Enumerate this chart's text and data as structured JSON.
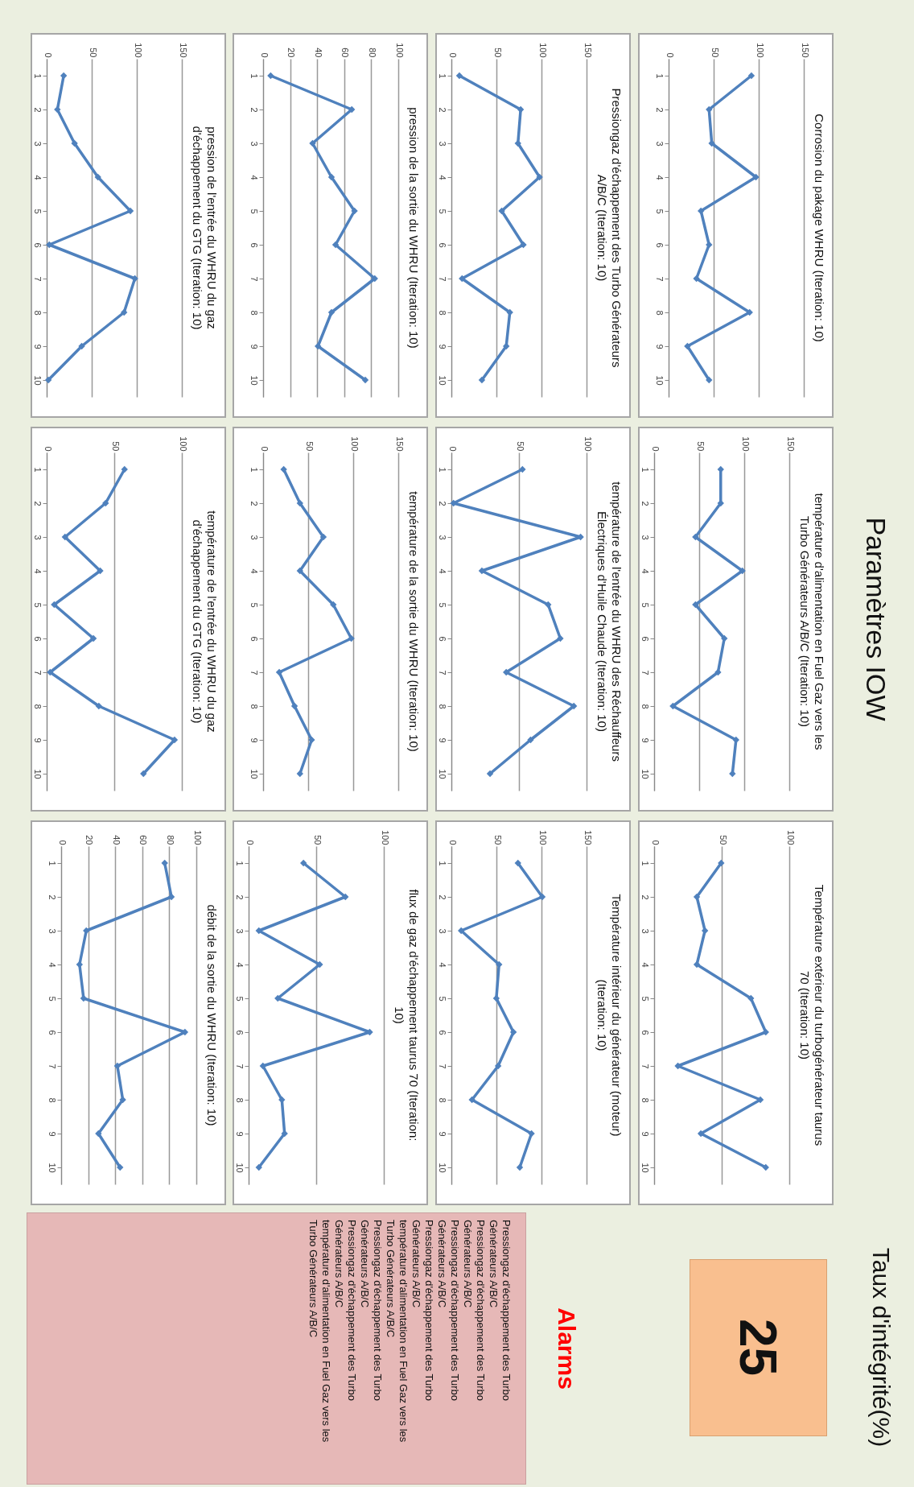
{
  "chart_data": [
    {
      "type": "other",
      "title": "Paramètres IOW"
    },
    {
      "type": "line",
      "orientation": "horizontal",
      "title": "Corrosion du pakage WHRU (Iteration: 10)",
      "categories": [
        "1",
        "2",
        "3",
        "4",
        "5",
        "6",
        "7",
        "8",
        "9",
        "10"
      ],
      "values": [
        91,
        44,
        47,
        96,
        35,
        44,
        30,
        89,
        20,
        44
      ],
      "color": "#4f81bd",
      "xlim": [
        0,
        150
      ],
      "xticks": [
        0,
        50,
        100,
        150
      ],
      "grid": "x",
      "marker": "diamond"
    },
    {
      "type": "line",
      "orientation": "horizontal",
      "title": "température d'alimentation en Fuel Gaz vers les Turbo Générateurs A/B/C (Iteration: 10)",
      "categories": [
        "1",
        "2",
        "3",
        "4",
        "5",
        "6",
        "7",
        "8",
        "9",
        "10"
      ],
      "values": [
        73,
        73,
        45,
        97,
        45,
        77,
        70,
        20,
        90,
        86
      ],
      "color": "#4f81bd",
      "xlim": [
        0,
        150
      ],
      "xticks": [
        0,
        50,
        100,
        150
      ],
      "grid": "x",
      "marker": "diamond"
    },
    {
      "type": "line",
      "orientation": "horizontal",
      "title": "Température extérieur du turbogénérateur taurus 70 (Iteration: 10)",
      "categories": [
        "1",
        "2",
        "3",
        "4",
        "5",
        "6",
        "7",
        "8",
        "9",
        "10"
      ],
      "values": [
        49,
        31,
        37,
        31,
        71,
        82,
        17,
        78,
        34,
        82
      ],
      "color": "#4f81bd",
      "xlim": [
        0,
        100
      ],
      "xticks": [
        0,
        50,
        100
      ],
      "grid": "x",
      "marker": "diamond"
    },
    {
      "type": "other",
      "title": "Taux d'intégrité(%)",
      "values": [
        25
      ],
      "data_labels": true
    },
    {
      "type": "line",
      "orientation": "horizontal",
      "title": "Pressiongaz d'échappement des Turbo Générateurs A/B/C (Iteration: 10)",
      "categories": [
        "1",
        "2",
        "3",
        "4",
        "5",
        "6",
        "7",
        "8",
        "9",
        "10"
      ],
      "values": [
        8,
        76,
        73,
        97,
        55,
        79,
        11,
        64,
        60,
        33
      ],
      "color": "#4f81bd",
      "xlim": [
        0,
        150
      ],
      "xticks": [
        0,
        50,
        100,
        150
      ],
      "grid": "x",
      "marker": "diamond"
    },
    {
      "type": "line",
      "orientation": "horizontal",
      "title": "température de l'entrée du WHRU des Réchauffeurs Électriques d'Huile Chaude (Iteration: 10)",
      "categories": [
        "1",
        "2",
        "3",
        "4",
        "5",
        "6",
        "7",
        "8",
        "9",
        "10"
      ],
      "values": [
        52,
        1,
        95,
        22,
        71,
        80,
        40,
        90,
        58,
        28
      ],
      "color": "#4f81bd",
      "xlim": [
        0,
        100
      ],
      "xticks": [
        0,
        50,
        100
      ],
      "grid": "x",
      "marker": "diamond"
    },
    {
      "type": "line",
      "orientation": "horizontal",
      "title": "Température intérieur du générateur (moteur) (Iteration: 10)",
      "categories": [
        "1",
        "2",
        "3",
        "4",
        "5",
        "6",
        "7",
        "8",
        "9",
        "10"
      ],
      "values": [
        73,
        100,
        10,
        52,
        49,
        68,
        51,
        22,
        88,
        75
      ],
      "color": "#4f81bd",
      "xlim": [
        0,
        150
      ],
      "xticks": [
        0,
        50,
        100,
        150
      ],
      "grid": "x",
      "marker": "diamond"
    },
    {
      "type": "other",
      "title": "Alarms",
      "annotations": [
        "Pressiongaz d'échappement des Turbo Générateurs A/B/C",
        "Pressiongaz d'échappement des Turbo Générateurs A/B/C",
        "Pressiongaz d'échappement des Turbo Générateurs A/B/C",
        "Pressiongaz d'échappement des Turbo Générateurs A/B/C",
        "température d'alimentation en Fuel Gaz vers les Turbo Générateurs A/B/C",
        "Pressiongaz d'échappement des Turbo Générateurs A/B/C",
        "Pressiongaz d'échappement des Turbo Générateurs A/B/C",
        "température d'alimentation en Fuel Gaz vers les Turbo Générateurs A/B/C"
      ]
    },
    {
      "type": "line",
      "orientation": "horizontal",
      "title": "pression de la sortie du WHRU (Iteration: 10)",
      "categories": [
        "1",
        "2",
        "3",
        "4",
        "5",
        "6",
        "7",
        "8",
        "9",
        "10"
      ],
      "values": [
        5,
        65,
        36,
        50,
        67,
        53,
        82,
        50,
        40,
        75
      ],
      "color": "#4f81bd",
      "xlim": [
        0,
        100
      ],
      "xticks": [
        0,
        20,
        40,
        60,
        80,
        100
      ],
      "grid": "x",
      "marker": "diamond"
    },
    {
      "type": "line",
      "orientation": "horizontal",
      "title": "température de la sortie du WHRU (Iteration: 10)",
      "categories": [
        "1",
        "2",
        "3",
        "4",
        "5",
        "6",
        "7",
        "8",
        "9",
        "10"
      ],
      "values": [
        22,
        40,
        66,
        40,
        77,
        97,
        17,
        34,
        53,
        40
      ],
      "color": "#4f81bd",
      "xlim": [
        0,
        150
      ],
      "xticks": [
        0,
        50,
        100,
        150
      ],
      "grid": "x",
      "marker": "diamond"
    },
    {
      "type": "line",
      "orientation": "horizontal",
      "title": "flux de gaz d'échappement taurus 70 (Iteration: 10)",
      "categories": [
        "1",
        "2",
        "3",
        "4",
        "5",
        "6",
        "7",
        "8",
        "9",
        "10"
      ],
      "values": [
        40,
        71,
        7,
        52,
        21,
        89,
        10,
        24,
        26,
        7
      ],
      "color": "#4f81bd",
      "xlim": [
        0,
        100
      ],
      "xticks": [
        0,
        50,
        100
      ],
      "grid": "x",
      "marker": "diamond"
    },
    {
      "type": "line",
      "orientation": "horizontal",
      "title": "pression de l'entrée du WHRU du gaz d'échappement du GTG (Iteration: 10)",
      "categories": [
        "1",
        "2",
        "3",
        "4",
        "5",
        "6",
        "7",
        "8",
        "9",
        "10"
      ],
      "values": [
        18,
        11,
        30,
        56,
        92,
        2,
        97,
        85,
        38,
        1
      ],
      "color": "#4f81bd",
      "xlim": [
        0,
        150
      ],
      "xticks": [
        0,
        50,
        100,
        150
      ],
      "grid": "x",
      "marker": "diamond"
    },
    {
      "type": "line",
      "orientation": "horizontal",
      "title": "température de l'entrée du WHRU du gaz d'échappement du GTG (Iteration: 10)",
      "categories": [
        "1",
        "2",
        "3",
        "4",
        "5",
        "6",
        "7",
        "8",
        "9",
        "10"
      ],
      "values": [
        57,
        43,
        13,
        39,
        5,
        34,
        2,
        38,
        94,
        71
      ],
      "color": "#4f81bd",
      "xlim": [
        0,
        100
      ],
      "xticks": [
        0,
        50,
        100
      ],
      "grid": "x",
      "marker": "diamond"
    },
    {
      "type": "line",
      "orientation": "horizontal",
      "title": "débit de la sortie du WHRU (Iteration: 10)",
      "categories": [
        "1",
        "2",
        "3",
        "4",
        "5",
        "6",
        "7",
        "8",
        "9",
        "10"
      ],
      "values": [
        76,
        81,
        18,
        13,
        16,
        91,
        41,
        45,
        27,
        43
      ],
      "color": "#4f81bd",
      "xlim": [
        0,
        100
      ],
      "xticks": [
        0,
        20,
        40,
        60,
        80,
        100
      ],
      "grid": "x",
      "marker": "diamond"
    }
  ]
}
